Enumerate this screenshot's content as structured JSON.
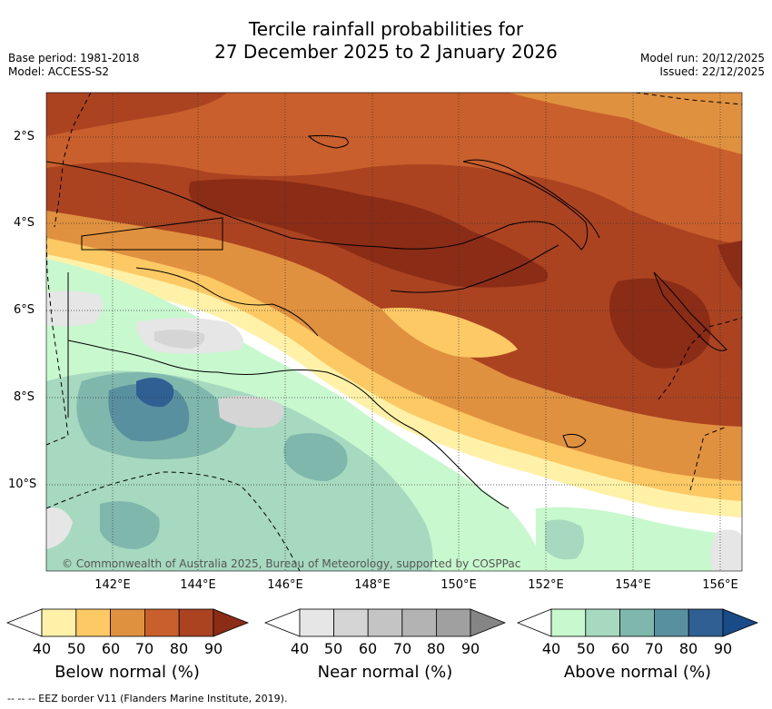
{
  "header": {
    "title_line1": "Tercile rainfall probabilities for",
    "title_line2": "27 December 2025 to 2 January 2026",
    "base_period": "Base period: 1981-2018",
    "model": "Model: ACCESS-S2",
    "model_run": "Model run: 20/12/2025",
    "issued": "Issued: 22/12/2025"
  },
  "map": {
    "lat_labels": [
      "2°S",
      "4°S",
      "6°S",
      "8°S",
      "10°S"
    ],
    "lon_labels": [
      "142°E",
      "144°E",
      "146°E",
      "148°E",
      "150°E",
      "152°E",
      "154°E",
      "156°E"
    ],
    "copyright": "© Commonwealth of Australia 2025, Bureau of Meteorology, supported by COSPPac"
  },
  "colorbars": [
    {
      "title": "Below normal (%)",
      "ticks": [
        "40",
        "50",
        "60",
        "70",
        "80",
        "90"
      ],
      "colors": [
        "#fff1a8",
        "#fcc965",
        "#e0913f",
        "#c95f2c",
        "#ab4321",
        "#8b2c16"
      ]
    },
    {
      "title": "Near normal (%)",
      "ticks": [
        "40",
        "50",
        "60",
        "70",
        "80",
        "90"
      ],
      "colors": [
        "#e6e6e6",
        "#d5d5d5",
        "#c4c4c4",
        "#b3b3b3",
        "#a0a0a0",
        "#858585"
      ]
    },
    {
      "title": "Above normal (%)",
      "ticks": [
        "40",
        "50",
        "60",
        "70",
        "80",
        "90"
      ],
      "colors": [
        "#c8f8ce",
        "#a6d9bf",
        "#7fb7ac",
        "#5990a0",
        "#2f5f93",
        "#184b87"
      ]
    }
  ],
  "legend": {
    "footnote": "--  --  -- EEZ border V11 (Flanders Marine Institute, 2019)."
  }
}
